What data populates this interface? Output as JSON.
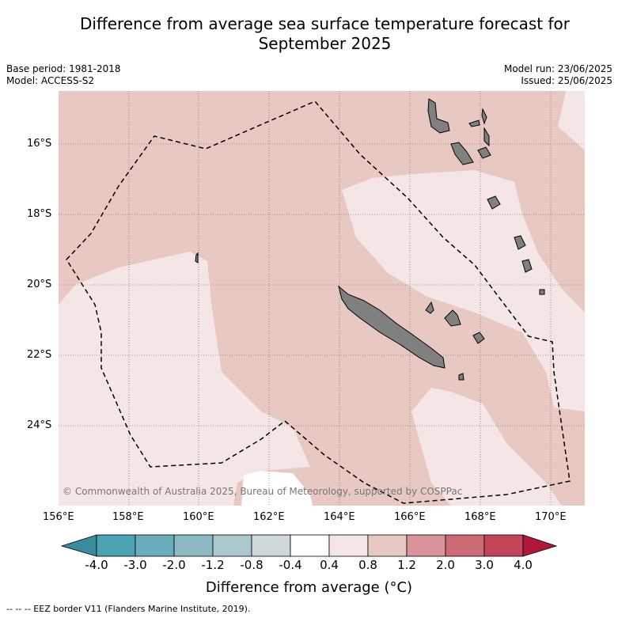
{
  "title_line1": "Difference from average sea surface temperature forecast for",
  "title_line2": "September 2025",
  "meta_left": [
    "Base period: 1981-2018",
    "Model: ACCESS-S2"
  ],
  "meta_right": [
    "Model run: 23/06/2025",
    "Issued: 25/06/2025"
  ],
  "lat_labels": [
    "16°S",
    "18°S",
    "20°S",
    "22°S",
    "24°S"
  ],
  "lon_labels": [
    "156°E",
    "158°E",
    "160°E",
    "162°E",
    "164°E",
    "166°E",
    "168°E",
    "170°E"
  ],
  "copyright": "© Commonwealth of Australia 2025, Bureau of Meteorology, supported by COSPPac",
  "colorbar": {
    "ticks": [
      "-4.0",
      "-3.0",
      "-2.0",
      "-1.2",
      "-0.8",
      "-0.4",
      "0.4",
      "0.8",
      "1.2",
      "2.0",
      "3.0",
      "4.0"
    ],
    "label": "Difference from average (°C)",
    "colors": [
      "#3a8c9c",
      "#4aa2b2",
      "#6aacbc",
      "#8cb8c4",
      "#a9c8cc",
      "#ced8d8",
      "#ffffff",
      "#f4e6e4",
      "#e8c8c2",
      "#d8949a",
      "#cc6a76",
      "#c24458",
      "#b0183a"
    ]
  },
  "footnote": "-- -- -- EEZ border V11 (Flanders Marine Institute, 2019)."
}
